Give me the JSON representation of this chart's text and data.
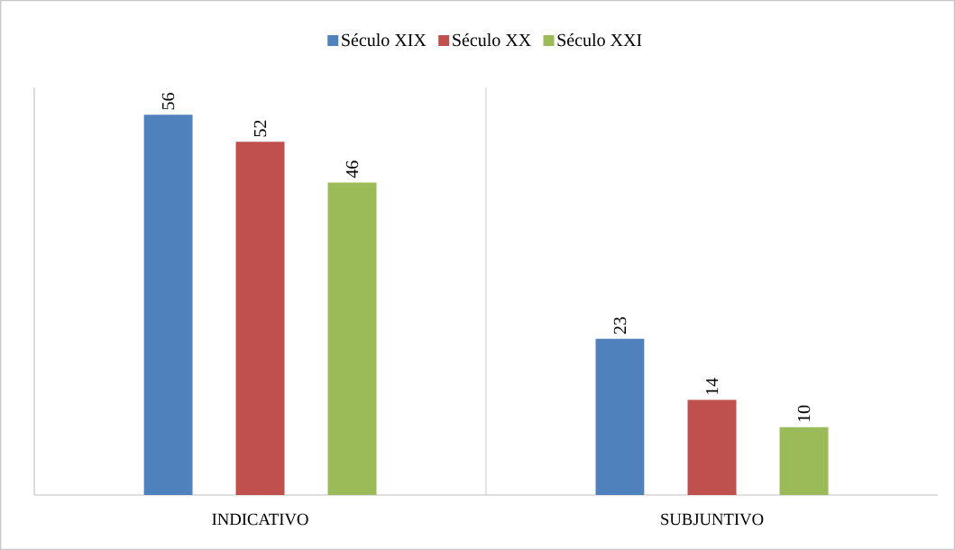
{
  "chart_data": {
    "type": "bar",
    "categories": [
      "INDICATIVO",
      "SUBJUNTIVO"
    ],
    "series": [
      {
        "name": "Século XIX",
        "color": "#4f81bd",
        "values": [
          56,
          23
        ]
      },
      {
        "name": "Século XX",
        "color": "#c0504d",
        "values": [
          52,
          14
        ]
      },
      {
        "name": "Século XXI",
        "color": "#9bbb59",
        "values": [
          46,
          10
        ]
      }
    ],
    "ylim": [
      0,
      60
    ],
    "tick_labels": "x",
    "data_labels": true,
    "grid": "x",
    "legend": "top"
  }
}
